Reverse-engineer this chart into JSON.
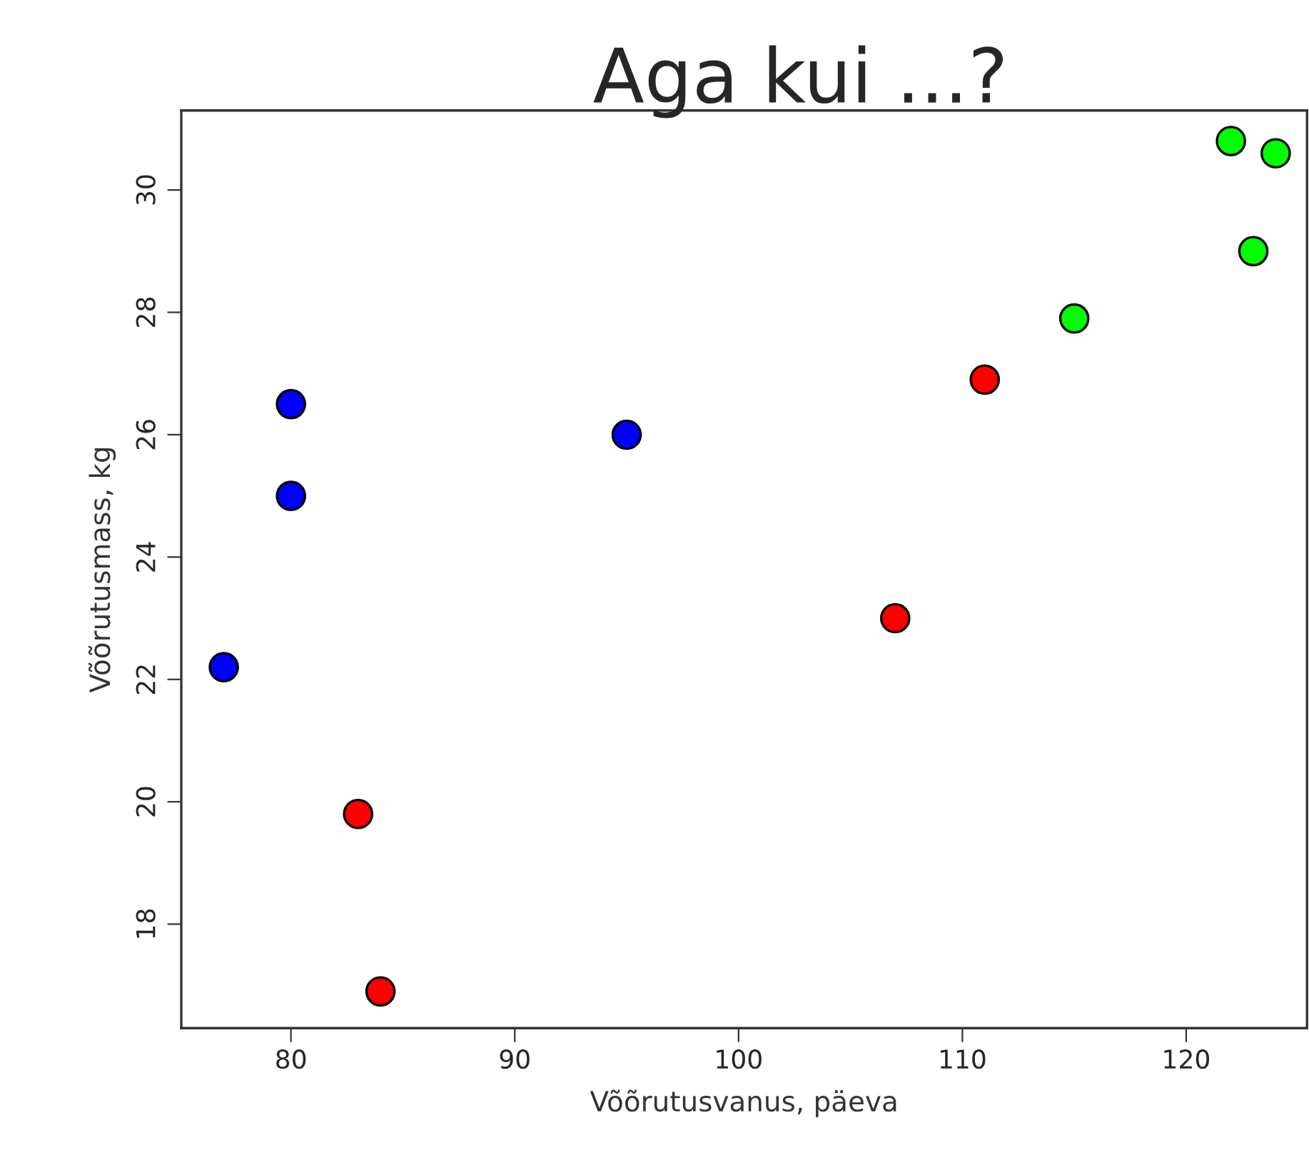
{
  "chart_data": {
    "type": "scatter",
    "title": "Aga kui ...?",
    "xlabel": "Võõrutusvanus, päeva",
    "ylabel": "Võõrutusmass, kg",
    "x": [
      77,
      80,
      80,
      95,
      83,
      84,
      107,
      111,
      115,
      122,
      124,
      123
    ],
    "values": [
      22.2,
      26.5,
      25.0,
      26.0,
      19.8,
      16.9,
      23.0,
      26.9,
      27.9,
      30.8,
      30.6,
      29.0
    ],
    "colors": [
      "#0000ff",
      "#0000ff",
      "#0000ff",
      "#0000ff",
      "#ff0000",
      "#ff0000",
      "#ff0000",
      "#ff0000",
      "#00ff00",
      "#00ff00",
      "#00ff00",
      "#00ff00"
    ],
    "xlim": [
      75.1,
      125.4
    ],
    "ylim": [
      16.3,
      31.3
    ],
    "xticks": [
      80,
      90,
      100,
      110,
      120
    ],
    "yticks": [
      18,
      20,
      22,
      24,
      26,
      28,
      30
    ],
    "marker": "circle",
    "grid": false,
    "legend": false
  }
}
